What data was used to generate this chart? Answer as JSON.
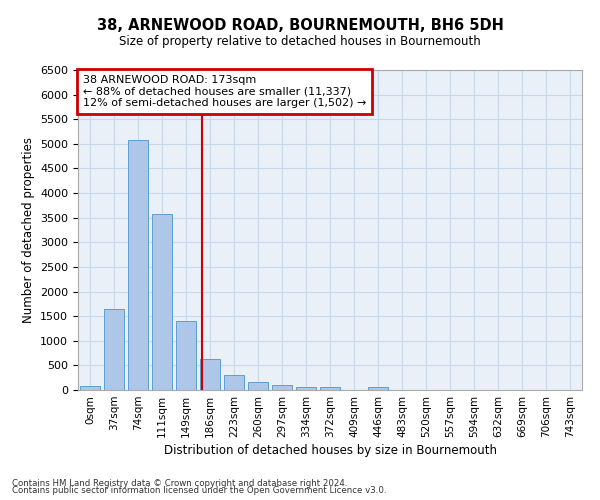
{
  "title": "38, ARNEWOOD ROAD, BOURNEMOUTH, BH6 5DH",
  "subtitle": "Size of property relative to detached houses in Bournemouth",
  "xlabel": "Distribution of detached houses by size in Bournemouth",
  "ylabel": "Number of detached properties",
  "bin_labels": [
    "0sqm",
    "37sqm",
    "74sqm",
    "111sqm",
    "149sqm",
    "186sqm",
    "223sqm",
    "260sqm",
    "297sqm",
    "334sqm",
    "372sqm",
    "409sqm",
    "446sqm",
    "483sqm",
    "520sqm",
    "557sqm",
    "594sqm",
    "632sqm",
    "669sqm",
    "706sqm",
    "743sqm"
  ],
  "bar_values": [
    75,
    1650,
    5080,
    3580,
    1400,
    620,
    300,
    155,
    95,
    60,
    55,
    0,
    55,
    0,
    0,
    0,
    0,
    0,
    0,
    0,
    0
  ],
  "bar_color": "#aec6e8",
  "bar_edge_color": "#5a9fd4",
  "vline_x": 4.68,
  "annotation_text": "38 ARNEWOOD ROAD: 173sqm\n← 88% of detached houses are smaller (11,337)\n12% of semi-detached houses are larger (1,502) →",
  "annotation_box_color": "#ffffff",
  "annotation_box_edge": "#cc0000",
  "ylim": [
    0,
    6500
  ],
  "yticks": [
    0,
    500,
    1000,
    1500,
    2000,
    2500,
    3000,
    3500,
    4000,
    4500,
    5000,
    5500,
    6000,
    6500
  ],
  "vline_color": "#cc0000",
  "grid_color": "#c8d8e8",
  "bg_color": "#eaf0f8",
  "footer1": "Contains HM Land Registry data © Crown copyright and database right 2024.",
  "footer2": "Contains public sector information licensed under the Open Government Licence v3.0."
}
